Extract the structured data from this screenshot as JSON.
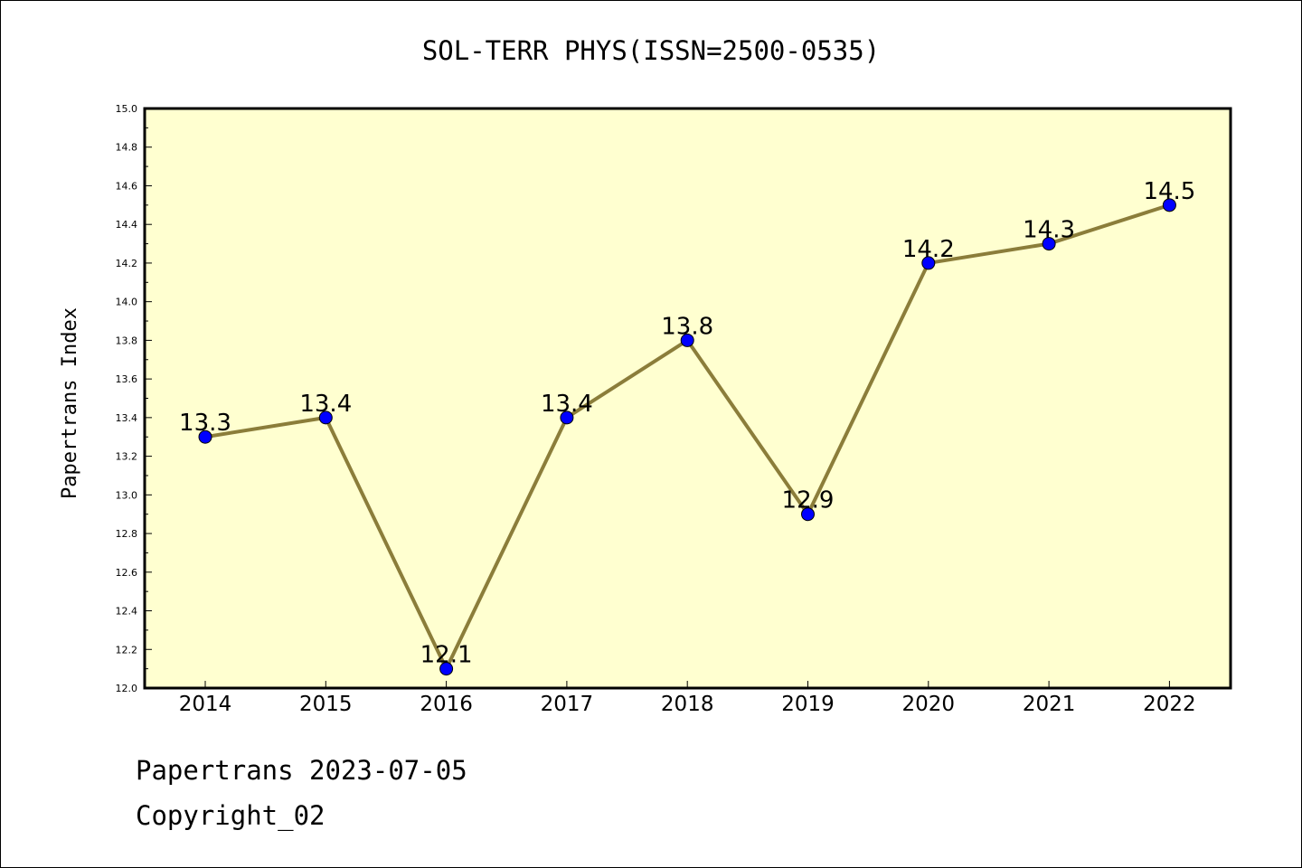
{
  "chart_data": {
    "type": "line",
    "title": "SOL-TERR PHYS(ISSN=2500-0535)",
    "xlabel": "",
    "ylabel": "Papertrans Index",
    "categories": [
      "2014",
      "2015",
      "2016",
      "2017",
      "2018",
      "2019",
      "2020",
      "2021",
      "2022"
    ],
    "values": [
      13.3,
      13.4,
      12.1,
      13.4,
      13.8,
      12.9,
      14.2,
      14.3,
      14.5
    ],
    "data_labels": [
      "13.3",
      "13.4",
      "12.1",
      "13.4",
      "13.8",
      "12.9",
      "14.2",
      "14.3",
      "14.5"
    ],
    "ylim": [
      12.0,
      15.0
    ],
    "yticks": [
      "12.0",
      "12.2",
      "12.4",
      "12.6",
      "12.8",
      "13.0",
      "13.2",
      "13.4",
      "13.6",
      "13.8",
      "14.0",
      "14.2",
      "14.4",
      "14.6",
      "14.8",
      "15.0"
    ],
    "grid": false,
    "legend": "none",
    "colors": {
      "plot_background": "#ffffd0",
      "line": "#8b7d3a",
      "marker": "#0000ff"
    }
  },
  "footer": {
    "line1": "Papertrans 2023-07-05",
    "line2": "Copyright_02"
  }
}
